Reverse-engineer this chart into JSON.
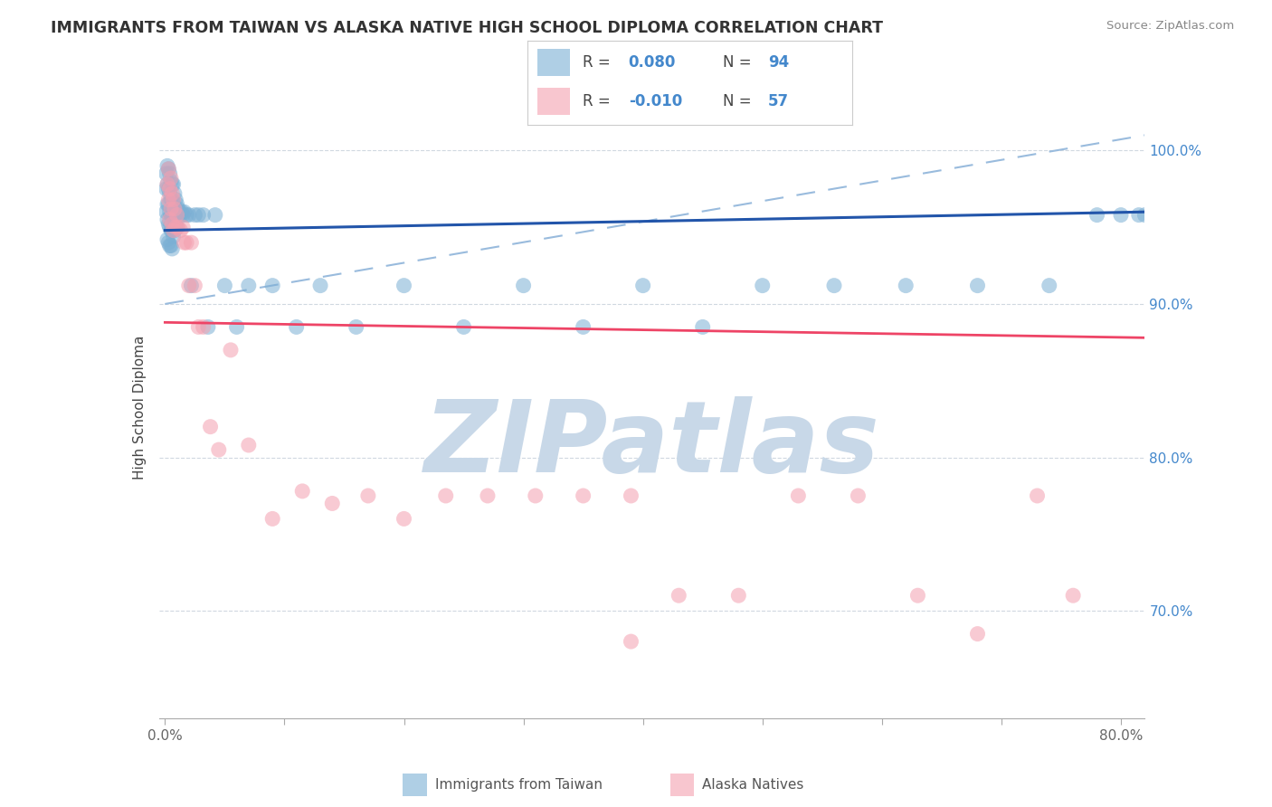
{
  "title": "IMMIGRANTS FROM TAIWAN VS ALASKA NATIVE HIGH SCHOOL DIPLOMA CORRELATION CHART",
  "source": "Source: ZipAtlas.com",
  "ylabel": "High School Diploma",
  "legend_labels": [
    "Immigrants from Taiwan",
    "Alaska Natives"
  ],
  "blue_color": "#7bafd4",
  "pink_color": "#f4a0b0",
  "blue_line_color": "#2255aa",
  "pink_line_color": "#ee4466",
  "dashed_line_color": "#99bbdd",
  "xlim": [
    -0.005,
    0.82
  ],
  "ylim": [
    0.63,
    1.035
  ],
  "watermark": "ZIPatlas",
  "watermark_color": "#c8d8e8",
  "blue_trend_x0": 0.0,
  "blue_trend_x1": 0.82,
  "blue_trend_y0": 0.948,
  "blue_trend_y1": 0.96,
  "pink_trend_x0": 0.0,
  "pink_trend_x1": 0.82,
  "pink_trend_y0": 0.888,
  "pink_trend_y1": 0.878,
  "dash_trend_x0": 0.0,
  "dash_trend_x1": 0.82,
  "dash_trend_y0": 0.9,
  "dash_trend_y1": 1.01,
  "blue_x": [
    0.001,
    0.001,
    0.001,
    0.002,
    0.002,
    0.002,
    0.002,
    0.002,
    0.003,
    0.003,
    0.003,
    0.003,
    0.003,
    0.004,
    0.004,
    0.004,
    0.004,
    0.004,
    0.005,
    0.005,
    0.005,
    0.005,
    0.005,
    0.006,
    0.006,
    0.006,
    0.006,
    0.006,
    0.007,
    0.007,
    0.007,
    0.007,
    0.008,
    0.008,
    0.008,
    0.009,
    0.009,
    0.01,
    0.01,
    0.011,
    0.012,
    0.013,
    0.014,
    0.015,
    0.016,
    0.018,
    0.02,
    0.022,
    0.025,
    0.028,
    0.032,
    0.036,
    0.042,
    0.05,
    0.06,
    0.07,
    0.09,
    0.11,
    0.13,
    0.16,
    0.2,
    0.25,
    0.3,
    0.35,
    0.4,
    0.45,
    0.5,
    0.56,
    0.62,
    0.68,
    0.74,
    0.78,
    0.8,
    0.815,
    0.82
  ],
  "blue_y": [
    0.985,
    0.975,
    0.96,
    0.99,
    0.978,
    0.965,
    0.955,
    0.942,
    0.988,
    0.975,
    0.965,
    0.952,
    0.94,
    0.985,
    0.972,
    0.96,
    0.95,
    0.938,
    0.98,
    0.968,
    0.958,
    0.948,
    0.938,
    0.978,
    0.968,
    0.958,
    0.948,
    0.936,
    0.978,
    0.966,
    0.956,
    0.944,
    0.972,
    0.96,
    0.948,
    0.968,
    0.952,
    0.965,
    0.95,
    0.962,
    0.96,
    0.958,
    0.96,
    0.958,
    0.96,
    0.958,
    0.958,
    0.912,
    0.958,
    0.958,
    0.958,
    0.885,
    0.958,
    0.912,
    0.885,
    0.912,
    0.912,
    0.885,
    0.912,
    0.885,
    0.912,
    0.885,
    0.912,
    0.885,
    0.912,
    0.885,
    0.912,
    0.912,
    0.912,
    0.912,
    0.912,
    0.958,
    0.958,
    0.958,
    0.958
  ],
  "pink_x": [
    0.002,
    0.003,
    0.003,
    0.004,
    0.004,
    0.005,
    0.005,
    0.006,
    0.006,
    0.007,
    0.007,
    0.008,
    0.009,
    0.01,
    0.011,
    0.013,
    0.015,
    0.016,
    0.018,
    0.02,
    0.022,
    0.025,
    0.028,
    0.032,
    0.038,
    0.045,
    0.055,
    0.07,
    0.09,
    0.115,
    0.14,
    0.17,
    0.2,
    0.235,
    0.27,
    0.31,
    0.35,
    0.39,
    0.43,
    0.48,
    0.53,
    0.58,
    0.63,
    0.68,
    0.73,
    0.76,
    0.39
  ],
  "pink_y": [
    0.978,
    0.988,
    0.968,
    0.975,
    0.955,
    0.982,
    0.962,
    0.972,
    0.952,
    0.968,
    0.948,
    0.962,
    0.95,
    0.958,
    0.95,
    0.948,
    0.95,
    0.94,
    0.94,
    0.912,
    0.94,
    0.912,
    0.885,
    0.885,
    0.82,
    0.805,
    0.87,
    0.808,
    0.76,
    0.778,
    0.77,
    0.775,
    0.76,
    0.775,
    0.775,
    0.775,
    0.775,
    0.775,
    0.71,
    0.71,
    0.775,
    0.775,
    0.71,
    0.685,
    0.775,
    0.71,
    0.68
  ],
  "r_blue": "0.080",
  "r_pink": "-0.010",
  "n_blue": "94",
  "n_pink": "57"
}
